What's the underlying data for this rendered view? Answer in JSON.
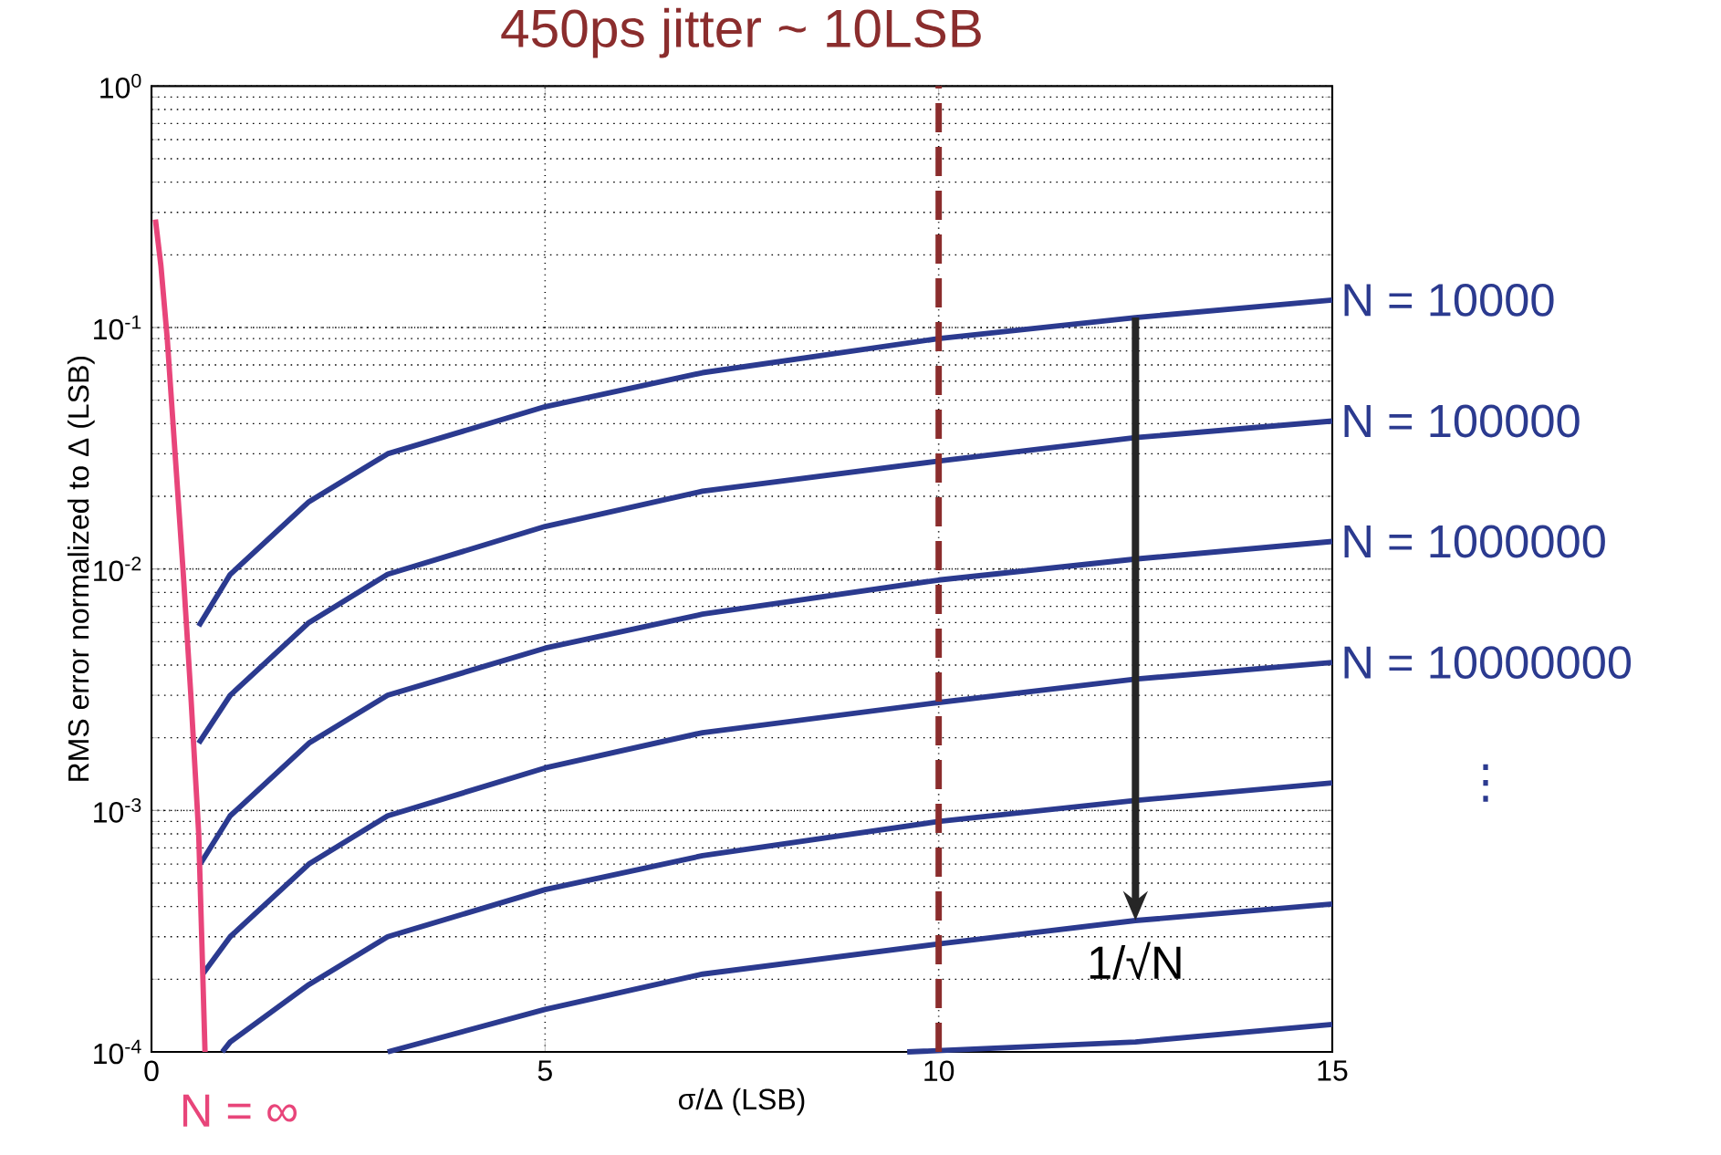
{
  "chart_data": {
    "type": "line",
    "title": "450ps jitter ~ 10LSB",
    "xlabel": "σ/Δ (LSB)",
    "ylabel": "RMS error normalized to Δ (LSB)",
    "xlim": [
      0,
      15
    ],
    "xticks": [
      0,
      5,
      10,
      15
    ],
    "ylim": [
      0.0001,
      1
    ],
    "log": "y",
    "yticks": [
      {
        "value": 0.0001,
        "label": "10$^{-4}$"
      },
      {
        "value": 0.001,
        "label": "10$^{-3}$"
      },
      {
        "value": 0.01,
        "label": "10$^{-2}$"
      },
      {
        "value": 0.1,
        "label": "10$^{-1}$"
      },
      {
        "value": 1,
        "label": "10$^{0}$"
      }
    ],
    "grid": true,
    "line_style": "solid",
    "series": [
      {
        "name": "N = 10000",
        "color": "#2b3a8f",
        "x": [
          0.6,
          1,
          2,
          3,
          5,
          7,
          10,
          12.5,
          15
        ],
        "values": [
          0.0058,
          0.0095,
          0.019,
          0.03,
          0.047,
          0.065,
          0.09,
          0.11,
          0.13
        ]
      },
      {
        "name": "N = 100000",
        "color": "#2b3a8f",
        "x": [
          0.6,
          1,
          2,
          3,
          5,
          7,
          10,
          12.5,
          15
        ],
        "values": [
          0.0019,
          0.003,
          0.006,
          0.0095,
          0.015,
          0.021,
          0.028,
          0.035,
          0.041
        ]
      },
      {
        "name": "N = 1000000",
        "color": "#2b3a8f",
        "x": [
          0.62,
          1,
          2,
          3,
          5,
          7,
          10,
          12.5,
          15
        ],
        "values": [
          0.0006,
          0.00095,
          0.0019,
          0.003,
          0.0047,
          0.0065,
          0.009,
          0.011,
          0.013
        ]
      },
      {
        "name": "N = 10000000",
        "color": "#2b3a8f",
        "x": [
          0.65,
          1,
          2,
          3,
          5,
          7,
          10,
          12.5,
          15
        ],
        "values": [
          0.00021,
          0.0003,
          0.0006,
          0.00095,
          0.0015,
          0.0021,
          0.0028,
          0.0035,
          0.0041
        ]
      },
      {
        "color": "#2b3a8f",
        "x": [
          0.9,
          1,
          2,
          3,
          5,
          7,
          10,
          12.5,
          15
        ],
        "values": [
          0.0001,
          0.00011,
          0.00019,
          0.0003,
          0.00047,
          0.00065,
          0.0009,
          0.0011,
          0.0013
        ]
      },
      {
        "color": "#2b3a8f",
        "x": [
          3,
          5,
          7,
          10,
          12.5,
          15
        ],
        "values": [
          0.0001,
          0.00015,
          0.00021,
          0.00028,
          0.00035,
          0.00041
        ]
      },
      {
        "color": "#2b3a8f",
        "x": [
          9.6,
          12.5,
          15
        ],
        "values": [
          0.0001,
          0.00011,
          0.00013
        ]
      },
      {
        "name": "N = ∞",
        "color": "#e8457a",
        "x": [
          0.05,
          0.12,
          0.2,
          0.3,
          0.4,
          0.5,
          0.6,
          0.68
        ],
        "values": [
          0.28,
          0.18,
          0.09,
          0.03,
          0.01,
          0.003,
          0.0008,
          0.0001
        ]
      }
    ],
    "ref_lines": [
      {
        "axis": "x",
        "value": 10,
        "color": "#8b2d2d",
        "line_style": "dashed"
      }
    ],
    "annotations": [
      "1/√N",
      "⋮"
    ]
  }
}
